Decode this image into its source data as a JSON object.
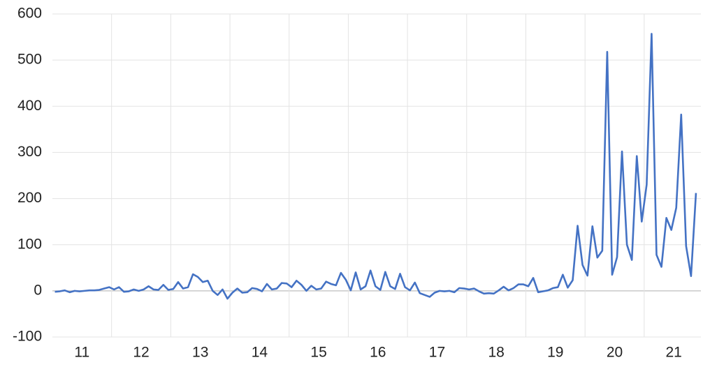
{
  "chart_data": {
    "type": "line",
    "categories": [
      "11",
      null,
      null,
      null,
      null,
      null,
      null,
      null,
      null,
      null,
      null,
      null,
      "12",
      null,
      null,
      null,
      null,
      null,
      null,
      null,
      null,
      null,
      null,
      null,
      "13",
      null,
      null,
      null,
      null,
      null,
      null,
      null,
      null,
      null,
      null,
      null,
      "14",
      null,
      null,
      null,
      null,
      null,
      null,
      null,
      null,
      null,
      null,
      null,
      "15",
      null,
      null,
      null,
      null,
      null,
      null,
      null,
      null,
      null,
      null,
      null,
      "16",
      null,
      null,
      null,
      null,
      null,
      null,
      null,
      null,
      null,
      null,
      null,
      "17",
      null,
      null,
      null,
      null,
      null,
      null,
      null,
      null,
      null,
      null,
      null,
      "18",
      null,
      null,
      null,
      null,
      null,
      null,
      null,
      null,
      null,
      null,
      null,
      "19",
      null,
      null,
      null,
      null,
      null,
      null,
      null,
      null,
      null,
      null,
      null,
      "20",
      null,
      null,
      null,
      null,
      null,
      null,
      null,
      null,
      null,
      null,
      null,
      "21",
      null,
      null,
      null,
      null,
      null,
      null,
      null,
      null,
      null,
      null
    ],
    "series": [
      {
        "color": "#4472c4",
        "values": [
          -2,
          -1,
          1,
          -3,
          0,
          -1,
          0,
          1,
          1,
          2,
          5,
          8,
          3,
          8,
          -2,
          -1,
          3,
          0,
          3,
          10,
          3,
          2,
          13,
          2,
          4,
          19,
          5,
          8,
          36,
          30,
          19,
          22,
          0,
          -9,
          3,
          -17,
          -4,
          5,
          -4,
          -3,
          6,
          4,
          -1,
          15,
          3,
          5,
          17,
          16,
          8,
          22,
          13,
          0,
          11,
          3,
          5,
          20,
          15,
          12,
          39,
          24,
          1,
          40,
          3,
          10,
          44,
          10,
          2,
          41,
          10,
          4,
          37,
          8,
          1,
          18,
          -5,
          -9,
          -13,
          -4,
          0,
          -1,
          0,
          -3,
          6,
          5,
          3,
          5,
          -1,
          -6,
          -5,
          -6,
          1,
          9,
          1,
          6,
          14,
          14,
          10,
          28,
          -3,
          -1,
          1,
          6,
          8,
          35,
          7,
          23,
          141,
          56,
          33,
          140,
          72,
          87,
          518,
          35,
          73,
          302,
          100,
          67,
          292,
          150,
          230,
          557,
          78,
          52,
          158,
          132,
          180,
          382,
          97,
          32,
          212
        ]
      }
    ],
    "ylim": [
      -100,
      600
    ],
    "yticks": [
      -100,
      0,
      100,
      200,
      300,
      400,
      500,
      600
    ],
    "grid": true
  }
}
